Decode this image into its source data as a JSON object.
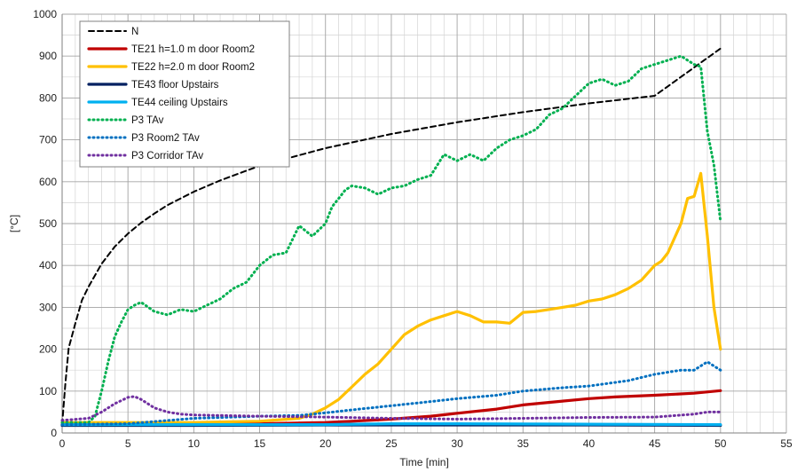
{
  "chart_data": {
    "type": "line",
    "title": "",
    "xlabel": "Time [min]",
    "ylabel": "[°C]",
    "xlim": [
      0,
      55
    ],
    "ylim": [
      0,
      1000
    ],
    "x_ticks": [
      0,
      5,
      10,
      15,
      20,
      25,
      30,
      35,
      40,
      45,
      50,
      55
    ],
    "y_ticks": [
      0,
      100,
      200,
      300,
      400,
      500,
      600,
      700,
      800,
      900,
      1000
    ],
    "grid": true,
    "legend_position": "top-left",
    "series": [
      {
        "name": "N",
        "color": "#000000",
        "style": "dashed",
        "x": [
          0,
          0.25,
          0.5,
          1,
          1.5,
          2,
          3,
          4,
          5,
          6,
          7,
          8,
          10,
          12,
          15,
          20,
          25,
          30,
          35,
          40,
          45,
          50
        ],
        "y": [
          20,
          119,
          203,
          261,
          317,
          349,
          404,
          445,
          476,
          502,
          524,
          544,
          576,
          603,
          638,
          680,
          714,
          742,
          766,
          787,
          805,
          918
        ]
      },
      {
        "name": "TE21 h=1.0 m door Room2",
        "color": "#c00000",
        "style": "solid",
        "x": [
          0,
          10,
          15,
          20,
          22,
          25,
          28,
          30,
          33,
          35,
          38,
          40,
          42,
          45,
          48,
          50
        ],
        "y": [
          20,
          20,
          22,
          25,
          28,
          33,
          40,
          47,
          57,
          67,
          76,
          82,
          86,
          90,
          95,
          101
        ]
      },
      {
        "name": "TE22 h=2.0 m door Room2",
        "color": "#ffc000",
        "style": "solid",
        "x": [
          0,
          5,
          10,
          15,
          18,
          19,
          20,
          21,
          22,
          23,
          24,
          25,
          26,
          27,
          28,
          29,
          30,
          31,
          32,
          33,
          34,
          35,
          36,
          37,
          38,
          39,
          40,
          41,
          42,
          43,
          44,
          45,
          45.5,
          46,
          47,
          47.5,
          48,
          48.5,
          49,
          49.5,
          50
        ],
        "y": [
          25,
          25,
          25,
          28,
          35,
          45,
          60,
          80,
          110,
          140,
          165,
          200,
          235,
          255,
          270,
          280,
          290,
          280,
          265,
          265,
          262,
          288,
          290,
          295,
          300,
          305,
          315,
          320,
          330,
          345,
          365,
          400,
          410,
          430,
          500,
          560,
          565,
          620,
          470,
          300,
          200
        ]
      },
      {
        "name": "TE43 floor Upstairs",
        "color": "#002060",
        "style": "solid",
        "x": [
          0,
          10,
          20,
          30,
          40,
          50
        ],
        "y": [
          18,
          18,
          19,
          19,
          19,
          18
        ]
      },
      {
        "name": "TE44 ceiling Upstairs",
        "color": "#00b0f0",
        "style": "solid",
        "x": [
          0,
          10,
          20,
          25,
          30,
          40,
          50
        ],
        "y": [
          20,
          20,
          20,
          22,
          22,
          21,
          20
        ]
      },
      {
        "name": "P3 TAv",
        "color": "#00b050",
        "style": "dotted",
        "x": [
          0,
          2,
          2.5,
          3,
          3.5,
          4,
          4.5,
          5,
          5.5,
          6,
          7,
          8,
          9,
          10,
          11,
          12,
          13,
          14,
          15,
          16,
          17,
          18,
          19,
          20,
          20.5,
          21,
          21.5,
          22,
          23,
          24,
          25,
          26,
          27,
          28,
          29,
          30,
          31,
          32,
          33,
          34,
          35,
          36,
          37,
          38,
          39,
          40,
          41,
          42,
          43,
          44,
          45,
          46,
          47,
          48,
          48.5,
          49,
          49.5,
          50
        ],
        "y": [
          25,
          25,
          40,
          100,
          170,
          230,
          265,
          295,
          305,
          312,
          290,
          282,
          295,
          290,
          305,
          320,
          345,
          360,
          400,
          425,
          430,
          495,
          470,
          500,
          540,
          560,
          580,
          590,
          585,
          570,
          585,
          590,
          605,
          615,
          665,
          650,
          665,
          650,
          680,
          700,
          710,
          725,
          760,
          775,
          805,
          835,
          845,
          830,
          840,
          870,
          880,
          890,
          900,
          880,
          875,
          720,
          640,
          505
        ]
      },
      {
        "name": "P3 Room2 TAv",
        "color": "#0070c0",
        "style": "dotted",
        "x": [
          0,
          5,
          10,
          15,
          18,
          20,
          22,
          25,
          28,
          30,
          33,
          35,
          38,
          40,
          43,
          45,
          47,
          48,
          49,
          49.5,
          50
        ],
        "y": [
          20,
          22,
          35,
          40,
          42,
          48,
          55,
          65,
          75,
          82,
          90,
          100,
          108,
          112,
          125,
          140,
          150,
          150,
          170,
          160,
          150
        ]
      },
      {
        "name": "P3 Corridor TAv",
        "color": "#7030a0",
        "style": "dotted",
        "x": [
          0,
          2,
          3,
          4,
          5,
          5.5,
          6,
          7,
          8,
          9,
          10,
          15,
          20,
          25,
          30,
          35,
          40,
          45,
          48,
          49,
          50
        ],
        "y": [
          30,
          35,
          50,
          70,
          85,
          87,
          80,
          60,
          50,
          45,
          43,
          40,
          38,
          35,
          33,
          35,
          37,
          38,
          45,
          50,
          50
        ]
      }
    ]
  }
}
